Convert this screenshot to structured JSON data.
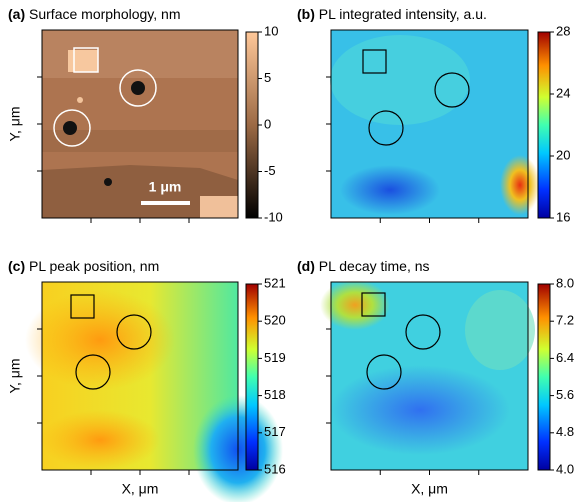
{
  "chart_data": [
    {
      "type": "heatmap",
      "panel_label": "(a)",
      "title": "Surface morphology, nm",
      "ylabel": "Y, μm",
      "colormap": "copper",
      "clim": [
        -10,
        10
      ],
      "cticks": [
        10,
        5,
        0,
        -5,
        -10
      ],
      "scalebar_label": "1 μm"
    },
    {
      "type": "heatmap",
      "panel_label": "(b)",
      "title": "PL integrated intensity, a.u.",
      "colormap": "jet",
      "clim": [
        16,
        28
      ],
      "cticks": [
        28,
        24,
        20,
        16
      ]
    },
    {
      "type": "heatmap",
      "panel_label": "(c)",
      "title": "PL peak position, nm",
      "ylabel": "Y, μm",
      "xlabel": "X, μm",
      "colormap": "jet",
      "clim": [
        516,
        521
      ],
      "cticks": [
        521,
        520,
        519,
        518,
        517,
        516
      ]
    },
    {
      "type": "heatmap",
      "panel_label": "(d)",
      "title": "PL decay time, ns",
      "xlabel": "X, μm",
      "colormap": "jet",
      "clim": [
        4,
        8
      ],
      "cticks": [
        {
          "value": 8,
          "label": "8.0"
        },
        7.2,
        6.4,
        5.6,
        4.8,
        {
          "value": 4,
          "label": "4.0"
        }
      ]
    }
  ]
}
